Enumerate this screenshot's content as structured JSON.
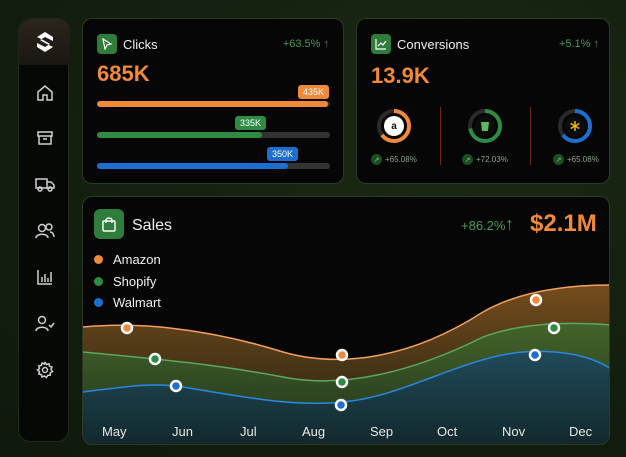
{
  "sidebar": {
    "items": [
      {
        "name": "home-icon"
      },
      {
        "name": "archive-icon"
      },
      {
        "name": "truck-icon"
      },
      {
        "name": "users-icon"
      },
      {
        "name": "bar-chart-icon"
      },
      {
        "name": "user-check-icon"
      },
      {
        "name": "settings-icon"
      }
    ]
  },
  "clicks": {
    "title": "Clicks",
    "delta": "+63.5% ↑",
    "total": "685K",
    "bars": [
      {
        "label": "435K",
        "fill": 0.99,
        "color": "#f0893a"
      },
      {
        "label": "335K",
        "fill": 0.71,
        "color": "#2e8b44"
      },
      {
        "label": "350K",
        "fill": 0.82,
        "color": "#1c6fd1"
      }
    ]
  },
  "conversions": {
    "title": "Conversions",
    "delta": "+5.1% ↑",
    "total": "13.9K",
    "rings": [
      {
        "name": "amazon-ring",
        "icon": "amazon-icon",
        "percent": "+65.08%",
        "color": "#f0893a",
        "fill": 0.65
      },
      {
        "name": "shopify-ring",
        "icon": "shopify-icon",
        "percent": "+72.03%",
        "color": "#2e8b44",
        "fill": 0.72
      },
      {
        "name": "walmart-ring",
        "icon": "walmart-icon",
        "percent": "+65.08%",
        "color": "#1c6fd1",
        "fill": 0.65
      }
    ]
  },
  "sales": {
    "title": "Sales",
    "delta": "+86.2%",
    "delta_arrow": "↑",
    "total": "$2.1M",
    "legend": [
      {
        "label": "Amazon",
        "color": "#f0893a"
      },
      {
        "label": "Shopify",
        "color": "#2e8b44"
      },
      {
        "label": "Walmart",
        "color": "#1c6fd1"
      }
    ],
    "months": [
      "May",
      "Jun",
      "Jul",
      "Aug",
      "Sep",
      "Oct",
      "Nov",
      "Dec"
    ]
  }
}
